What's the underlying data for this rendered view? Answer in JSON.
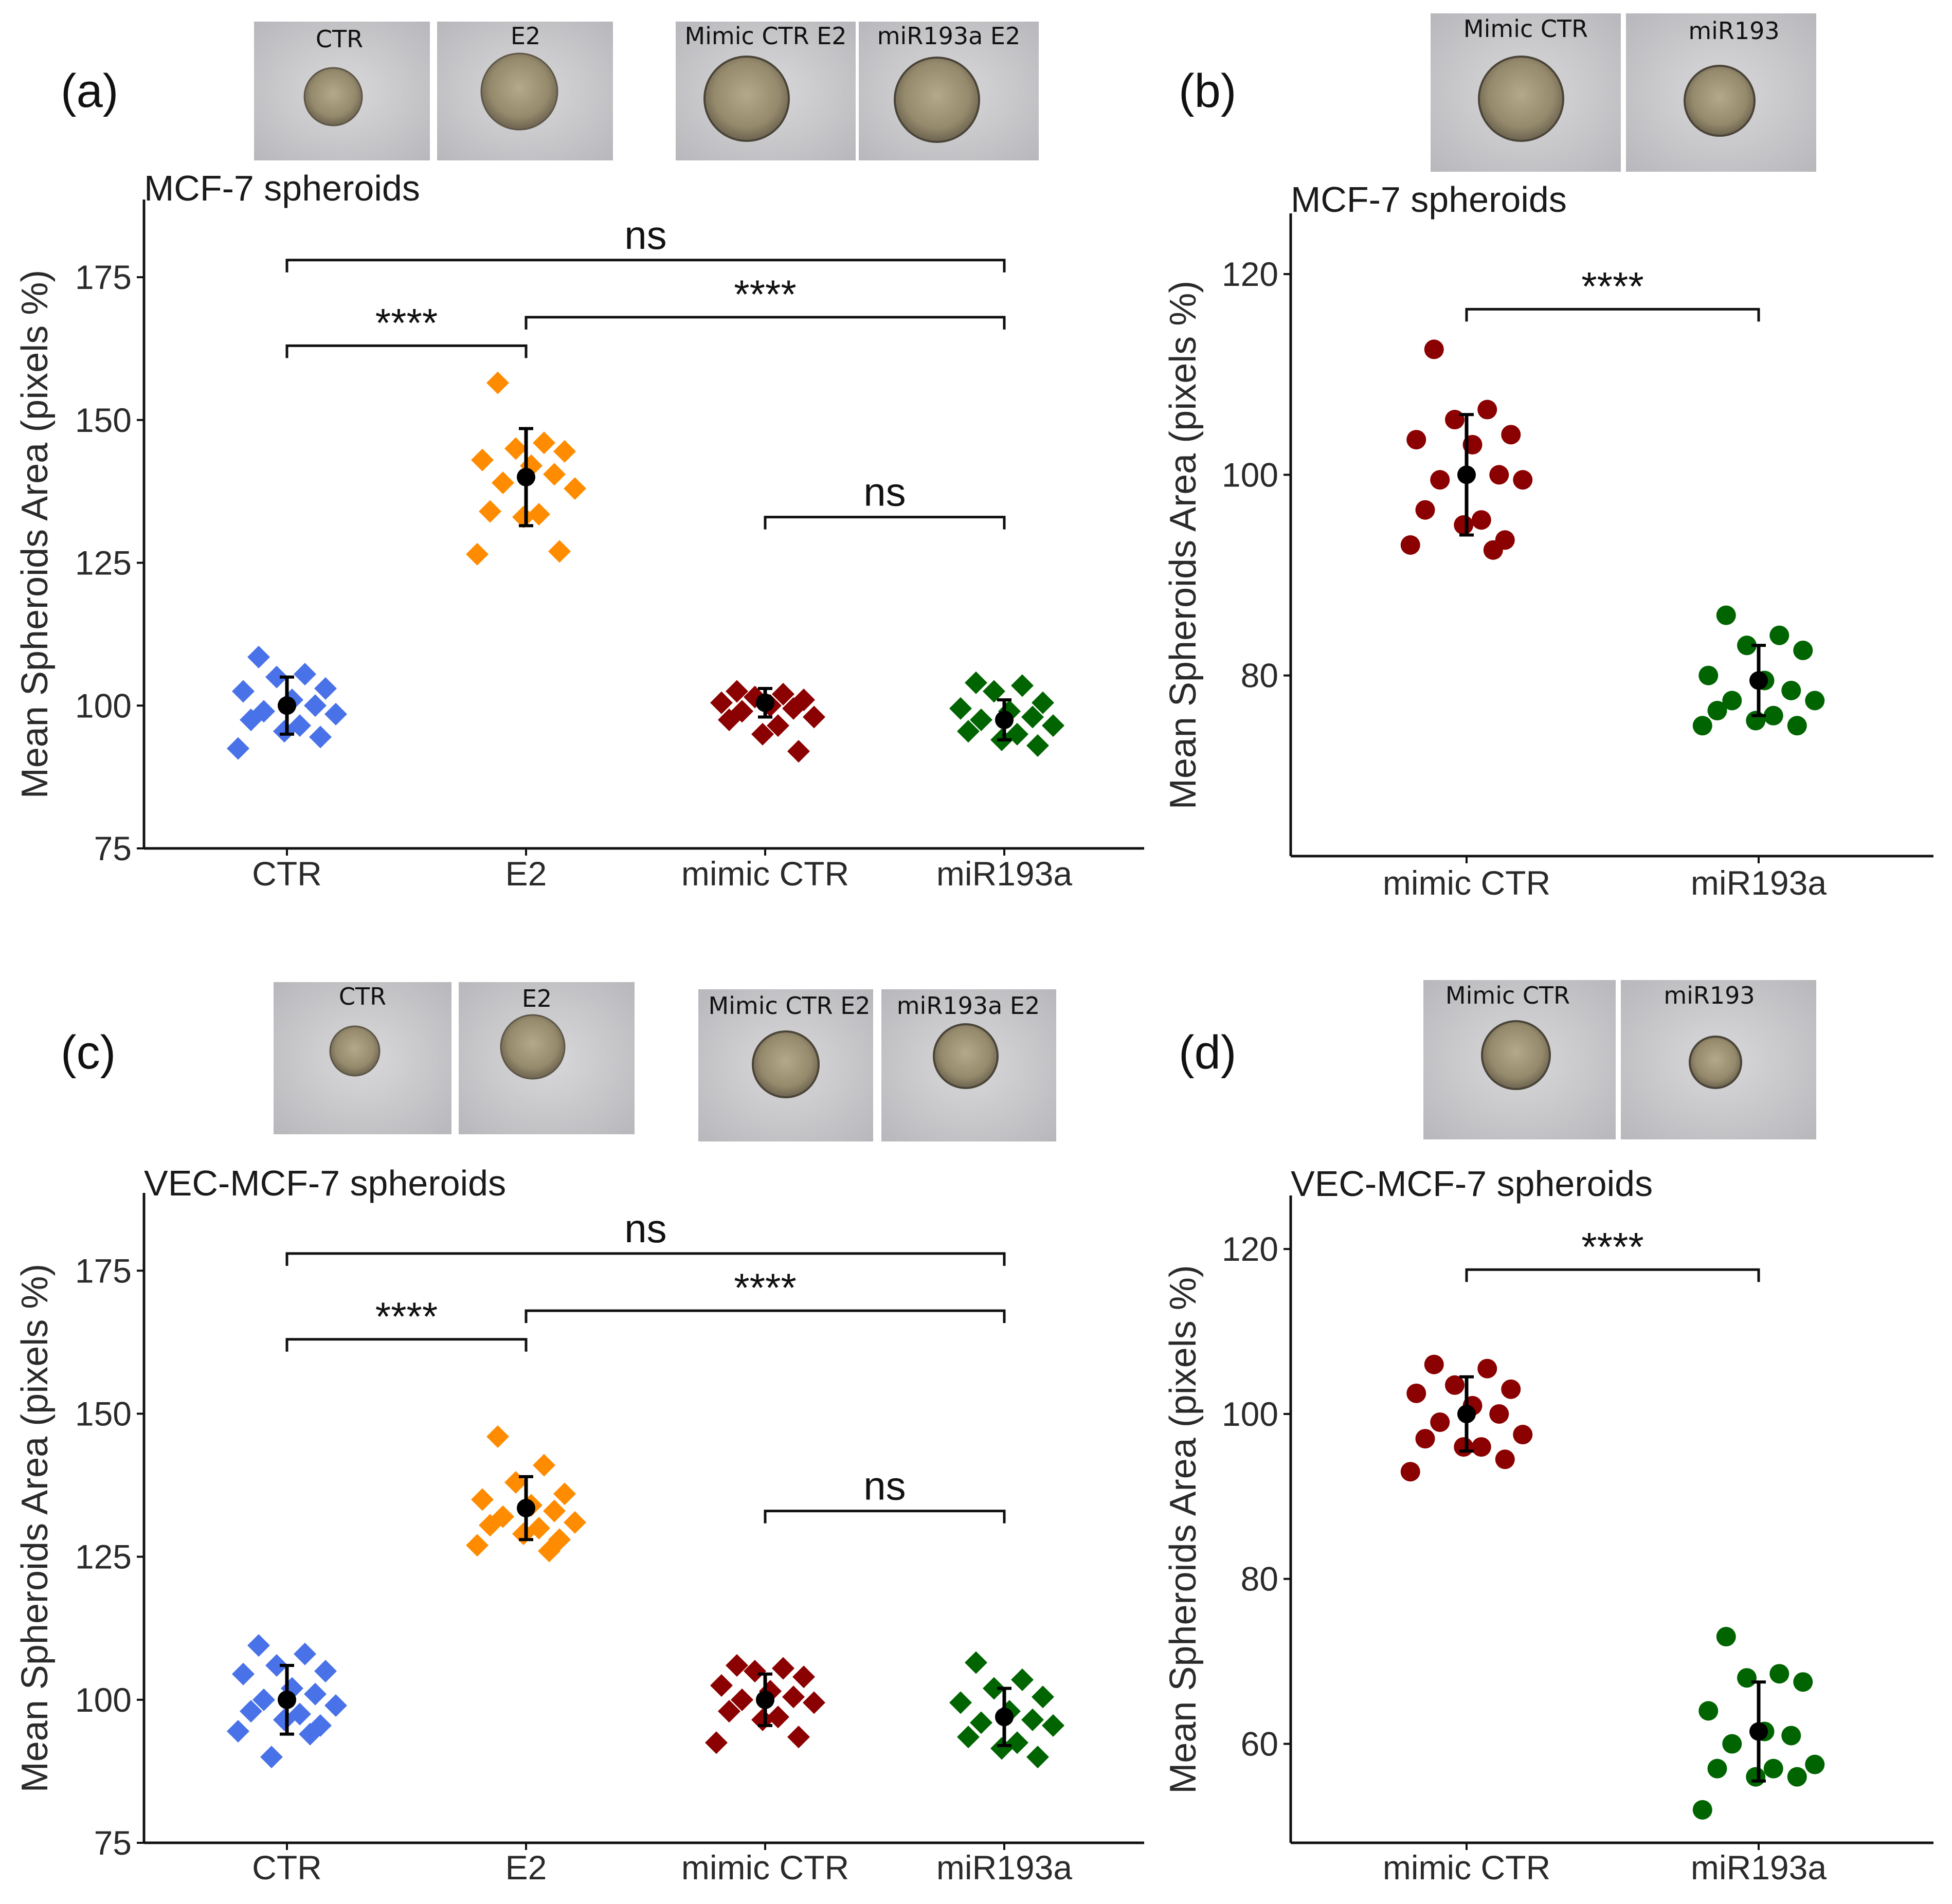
{
  "panels": {
    "a": {
      "letter": "(a)",
      "title": "MCF-7 spheroids",
      "photos": [
        "CTR",
        "E2",
        "Mimic CTR E2",
        "miR193a E2"
      ]
    },
    "b": {
      "letter": "(b)",
      "title": "MCF-7 spheroids",
      "photos": [
        "Mimic CTR",
        "miR193"
      ]
    },
    "c": {
      "letter": "(c)",
      "title": "VEC-MCF-7 spheroids",
      "photos": [
        "CTR",
        "E2",
        "Mimic CTR E2",
        "miR193a E2"
      ]
    },
    "d": {
      "letter": "(d)",
      "title": "VEC-MCF-7 spheroids",
      "photos": [
        "Mimic CTR",
        "miR193"
      ]
    }
  },
  "colors": {
    "CTR": "#4a72e8",
    "E2": "#ff8c00",
    "mimic CTR": "#8b0000",
    "miR193a": "#006400",
    "summary": "#000000"
  },
  "chart_data": [
    {
      "id": "a",
      "type": "scatter",
      "marker": "diamond",
      "title": "MCF-7 spheroids",
      "xlabel": "",
      "ylabel": "Mean Spheroids Area (pixels %)",
      "categories": [
        "CTR",
        "E2",
        "mimic CTR",
        "miR193a"
      ],
      "ylim": [
        75,
        185
      ],
      "yticks": [
        75,
        100,
        125,
        150,
        175
      ],
      "series": [
        {
          "name": "CTR",
          "values": [
            108.5,
            105.5,
            105.0,
            103.0,
            102.5,
            101.0,
            100.0,
            99.0,
            98.5,
            97.5,
            96.5,
            95.5,
            94.5,
            92.5
          ],
          "mean": 100,
          "sd": 5
        },
        {
          "name": "E2",
          "values": [
            156.5,
            146.0,
            145.0,
            144.5,
            143.0,
            142.0,
            140.5,
            139.0,
            138.0,
            134.0,
            133.5,
            133.0,
            127.0,
            126.5
          ],
          "mean": 140,
          "sd": 8.5
        },
        {
          "name": "mimic CTR",
          "values": [
            102.5,
            102.0,
            101.5,
            101.0,
            100.5,
            100.0,
            99.5,
            99.0,
            98.0,
            97.5,
            96.5,
            95.0,
            92.0
          ],
          "mean": 100.5,
          "sd": 2.5
        },
        {
          "name": "miR193a",
          "values": [
            104.0,
            103.5,
            102.5,
            100.5,
            99.5,
            99.0,
            98.0,
            97.5,
            96.5,
            95.5,
            95.0,
            94.0,
            93.0
          ],
          "mean": 97.5,
          "sd": 3.5
        }
      ],
      "comparisons": [
        {
          "from": "CTR",
          "to": "miR193a",
          "y": 178,
          "label": "ns"
        },
        {
          "from": "CTR",
          "to": "E2",
          "y": 163,
          "label": "****"
        },
        {
          "from": "E2",
          "to": "miR193a",
          "y": 168,
          "label": "****"
        },
        {
          "from": "mimic CTR",
          "to": "miR193a",
          "y": 133,
          "label": "ns"
        }
      ]
    },
    {
      "id": "b",
      "type": "scatter",
      "marker": "circle",
      "title": "MCF-7 spheroids",
      "xlabel": "",
      "ylabel": "Mean Spheroids Area (pixels %)",
      "categories": [
        "mimic CTR",
        "miR193a"
      ],
      "ylim": [
        62,
        124
      ],
      "yticks": [
        80,
        100,
        120
      ],
      "series": [
        {
          "name": "mimic CTR",
          "values": [
            112.5,
            106.5,
            105.5,
            104.0,
            103.5,
            103.0,
            100.0,
            99.5,
            99.5,
            96.5,
            95.5,
            95.0,
            93.5,
            93.0,
            92.5
          ],
          "mean": 100,
          "sd": 6
        },
        {
          "name": "miR193a",
          "values": [
            86.0,
            84.0,
            83.0,
            82.5,
            80.0,
            79.5,
            78.5,
            77.5,
            77.5,
            76.5,
            76.0,
            75.5,
            75.0,
            75.0
          ],
          "mean": 79.5,
          "sd": 3.5
        }
      ],
      "comparisons": [
        {
          "from": "mimic CTR",
          "to": "miR193a",
          "y": 116.5,
          "label": "****"
        }
      ]
    },
    {
      "id": "c",
      "type": "scatter",
      "marker": "diamond",
      "title": "VEC-MCF-7 spheroids",
      "xlabel": "",
      "ylabel": "Mean Spheroids Area (pixels %)",
      "categories": [
        "CTR",
        "E2",
        "mimic CTR",
        "miR193a"
      ],
      "ylim": [
        75,
        185
      ],
      "yticks": [
        75,
        100,
        125,
        150,
        175
      ],
      "series": [
        {
          "name": "CTR",
          "values": [
            109.5,
            108.0,
            106.0,
            105.0,
            104.5,
            102.0,
            101.0,
            100.0,
            99.0,
            98.0,
            97.5,
            96.5,
            95.5,
            94.5,
            94.0,
            90.0
          ],
          "mean": 100,
          "sd": 6
        },
        {
          "name": "E2",
          "values": [
            146.0,
            141.0,
            138.0,
            136.0,
            135.0,
            134.0,
            133.0,
            132.0,
            131.0,
            130.5,
            130.0,
            129.0,
            128.0,
            127.0,
            126.0
          ],
          "mean": 133.5,
          "sd": 5.5
        },
        {
          "name": "mimic CTR",
          "values": [
            106.0,
            105.5,
            105.0,
            104.0,
            102.5,
            101.5,
            100.5,
            100.0,
            99.5,
            98.0,
            97.0,
            96.5,
            93.5,
            92.5
          ],
          "mean": 100,
          "sd": 4.5
        },
        {
          "name": "miR193a",
          "values": [
            106.5,
            103.5,
            102.0,
            100.5,
            99.5,
            98.0,
            96.5,
            96.0,
            95.5,
            93.5,
            92.5,
            91.5,
            90.0
          ],
          "mean": 97,
          "sd": 5
        }
      ],
      "comparisons": [
        {
          "from": "CTR",
          "to": "miR193a",
          "y": 178,
          "label": "ns"
        },
        {
          "from": "CTR",
          "to": "E2",
          "y": 163,
          "label": "****"
        },
        {
          "from": "E2",
          "to": "miR193a",
          "y": 168,
          "label": "****"
        },
        {
          "from": "mimic CTR",
          "to": "miR193a",
          "y": 133,
          "label": "ns"
        }
      ]
    },
    {
      "id": "d",
      "type": "scatter",
      "marker": "circle",
      "title": "VEC-MCF-7 spheroids",
      "xlabel": "",
      "ylabel": "Mean Spheroids Area (pixels %)",
      "categories": [
        "mimic CTR",
        "miR193a"
      ],
      "ylim": [
        48,
        124
      ],
      "yticks": [
        60,
        80,
        100,
        120
      ],
      "series": [
        {
          "name": "mimic CTR",
          "values": [
            106.0,
            105.5,
            103.5,
            103.0,
            102.5,
            101.0,
            100.0,
            99.0,
            97.5,
            97.0,
            96.0,
            96.0,
            94.5,
            93.0
          ],
          "mean": 100,
          "sd": 4.5
        },
        {
          "name": "miR193a",
          "values": [
            73.0,
            68.5,
            68.0,
            67.5,
            64.0,
            61.5,
            61.0,
            60.0,
            57.5,
            57.0,
            57.0,
            56.0,
            56.0,
            52.0
          ],
          "mean": 61.5,
          "sd": 6
        }
      ],
      "comparisons": [
        {
          "from": "mimic CTR",
          "to": "miR193a",
          "y": 117.5,
          "label": "****"
        }
      ]
    }
  ]
}
